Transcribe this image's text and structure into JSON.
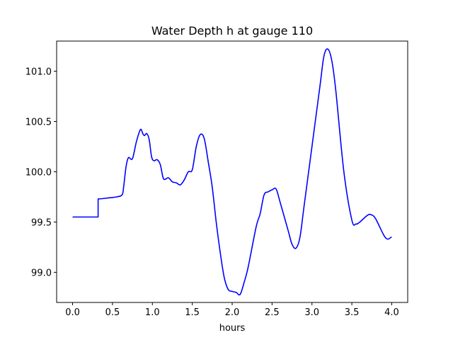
{
  "chart_data": {
    "type": "line",
    "title": "Water Depth h at gauge 110",
    "xlabel": "hours",
    "ylabel": "",
    "xlim": [
      -0.2,
      4.2
    ],
    "ylim": [
      98.7,
      101.3
    ],
    "xticks": [
      0.0,
      0.5,
      1.0,
      1.5,
      2.0,
      2.5,
      3.0,
      3.5,
      4.0
    ],
    "xtick_labels": [
      "0.0",
      "0.5",
      "1.0",
      "1.5",
      "2.0",
      "2.5",
      "3.0",
      "3.5",
      "4.0"
    ],
    "yticks": [
      99.0,
      99.5,
      100.0,
      100.5,
      101.0
    ],
    "ytick_labels": [
      "99.0",
      "99.5",
      "100.0",
      "100.5",
      "101.0"
    ],
    "grid": false,
    "series": [
      {
        "color": "#0000ff",
        "x": [
          0.0,
          0.32,
          0.32,
          0.45,
          0.55,
          0.62,
          0.64,
          0.67,
          0.7,
          0.75,
          0.8,
          0.85,
          0.88,
          0.9,
          0.93,
          0.96,
          0.99,
          1.02,
          1.06,
          1.1,
          1.14,
          1.2,
          1.25,
          1.3,
          1.35,
          1.4,
          1.45,
          1.5,
          1.55,
          1.6,
          1.65,
          1.7,
          1.75,
          1.8,
          1.85,
          1.9,
          1.95,
          2.0,
          2.05,
          2.1,
          2.15,
          2.2,
          2.3,
          2.35,
          2.4,
          2.45,
          2.5,
          2.55,
          2.6,
          2.7,
          2.75,
          2.8,
          2.85,
          2.9,
          3.0,
          3.1,
          3.15,
          3.2,
          3.25,
          3.3,
          3.4,
          3.5,
          3.55,
          3.6,
          3.7,
          3.75,
          3.8,
          3.9,
          3.95,
          4.0
        ],
        "y": [
          99.55,
          99.55,
          99.73,
          99.74,
          99.75,
          99.77,
          99.85,
          100.05,
          100.14,
          100.13,
          100.3,
          100.42,
          100.38,
          100.36,
          100.38,
          100.32,
          100.15,
          100.11,
          100.12,
          100.07,
          99.93,
          99.94,
          99.9,
          99.89,
          99.87,
          99.92,
          100.0,
          100.02,
          100.25,
          100.37,
          100.33,
          100.1,
          99.85,
          99.5,
          99.2,
          98.95,
          98.83,
          98.81,
          98.8,
          98.78,
          98.9,
          99.05,
          99.45,
          99.58,
          99.77,
          99.8,
          99.82,
          99.83,
          99.7,
          99.42,
          99.28,
          99.24,
          99.35,
          99.65,
          100.25,
          100.85,
          101.15,
          101.22,
          101.1,
          100.8,
          100.0,
          99.52,
          99.48,
          99.5,
          99.57,
          99.57,
          99.53,
          99.37,
          99.33,
          99.35
        ]
      }
    ]
  }
}
